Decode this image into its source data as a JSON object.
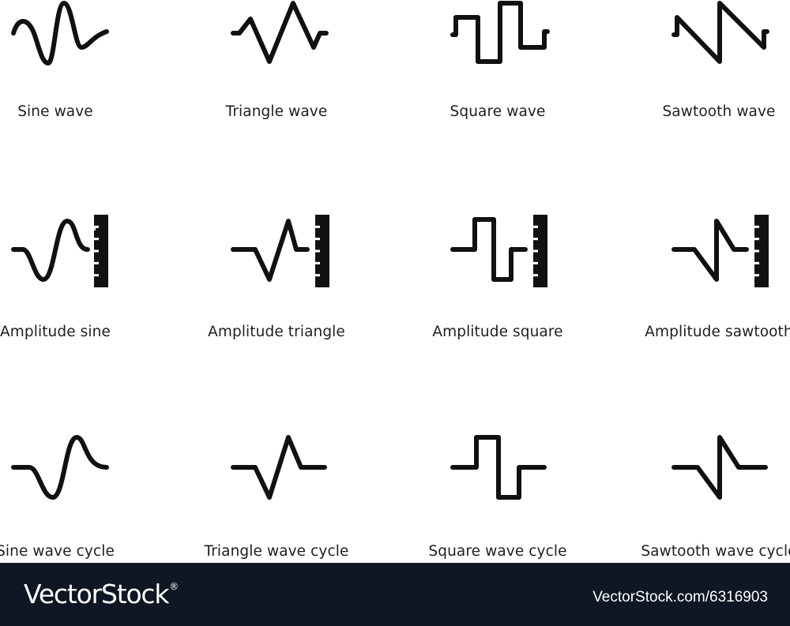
{
  "icons": [
    {
      "label": "Sine wave"
    },
    {
      "label": "Triangle wave"
    },
    {
      "label": "Square wave"
    },
    {
      "label": "Sawtooth wave"
    },
    {
      "label": "Amplitude sine"
    },
    {
      "label": "Amplitude triangle"
    },
    {
      "label": "Amplitude square"
    },
    {
      "label": "Amplitude sawtooth"
    },
    {
      "label": "Sine wave cycle"
    },
    {
      "label": "Triangle wave cycle"
    },
    {
      "label": "Square wave cycle"
    },
    {
      "label": "Sawtooth wave cycle"
    }
  ],
  "footer": {
    "brand": "VectorStock",
    "brand_mark": "®",
    "image_id": "VectorStock.com/6316903"
  },
  "colors": {
    "icon": "#111111",
    "footer_bg": "#0f1724",
    "footer_text": "#ffffff"
  }
}
